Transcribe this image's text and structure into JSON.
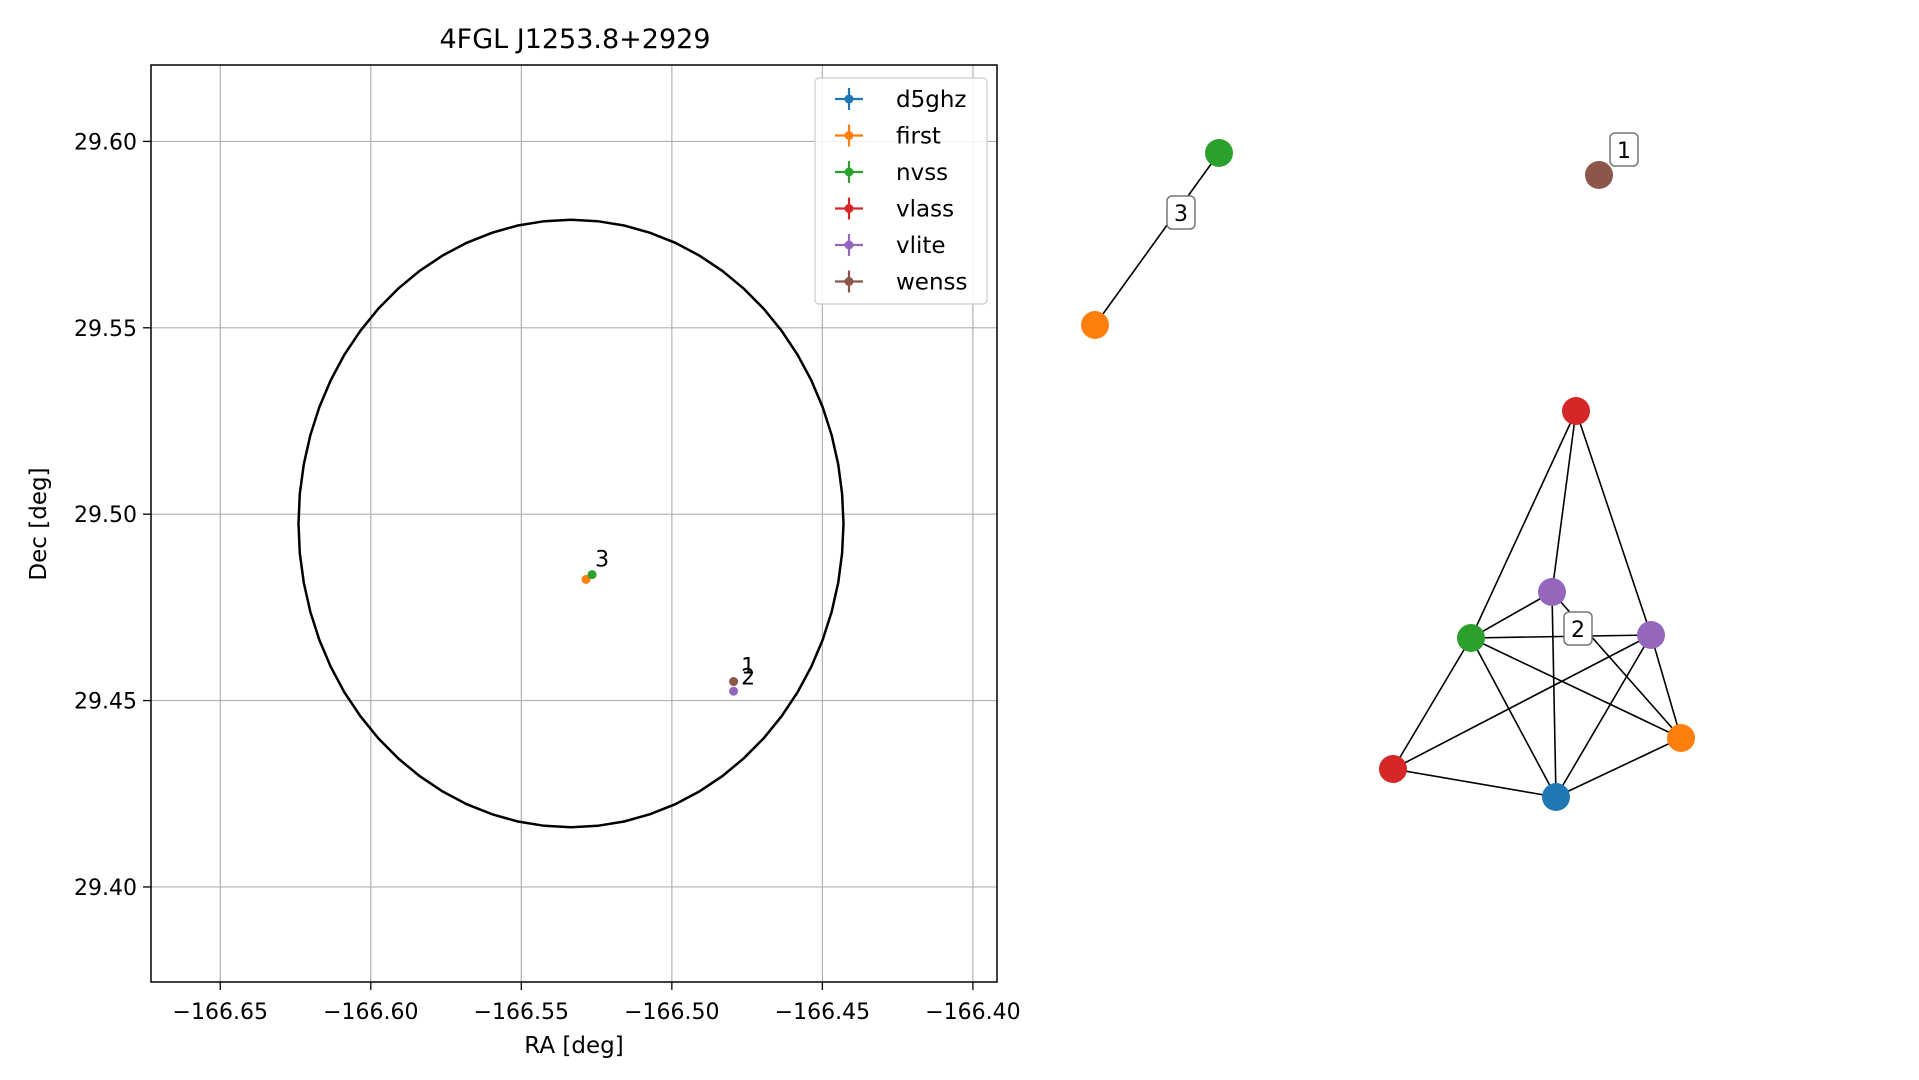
{
  "colors": {
    "d5ghz": "#1f77b4",
    "first": "#ff7f0e",
    "nvss": "#2ca02c",
    "vlass": "#d62728",
    "vlite": "#9467bd",
    "wenss": "#8c564b",
    "grid": "#b0b0b0",
    "edge": "#000000"
  },
  "chart_data": [
    {
      "type": "scatter",
      "title": "4FGL J1253.8+2929",
      "xlabel": "RA [deg]",
      "ylabel": "Dec [deg]",
      "xlim": [
        -166.673,
        -166.392
      ],
      "ylim": [
        29.3745,
        29.6205
      ],
      "xticks": [
        -166.65,
        -166.6,
        -166.55,
        -166.5,
        -166.45,
        -166.4
      ],
      "xtick_labels": [
        "−166.65",
        "−166.60",
        "−166.55",
        "−166.50",
        "−166.45",
        "−166.40"
      ],
      "yticks": [
        29.4,
        29.45,
        29.5,
        29.55,
        29.6
      ],
      "ytick_labels": [
        "29.40",
        "29.45",
        "29.50",
        "29.55",
        "29.60"
      ],
      "grid": true,
      "legend_position": "top-right",
      "ellipse": {
        "center_ra": -166.5335,
        "center_dec": 29.4975,
        "semi_major_ra": 0.0905,
        "semi_minor_dec": 0.0815
      },
      "series": [
        {
          "name": "d5ghz",
          "x": [],
          "y": []
        },
        {
          "name": "first",
          "x": [
            -166.5285
          ],
          "y": [
            29.4825
          ]
        },
        {
          "name": "nvss",
          "x": [
            -166.5265
          ],
          "y": [
            29.4838
          ]
        },
        {
          "name": "vlass",
          "x": [],
          "y": []
        },
        {
          "name": "vlite",
          "x": [
            -166.4795
          ],
          "y": [
            29.4525
          ]
        },
        {
          "name": "wenss",
          "x": [
            -166.4795
          ],
          "y": [
            29.4551
          ]
        }
      ],
      "annotations": [
        {
          "text": "3",
          "x": -166.5255,
          "y": 29.486
        },
        {
          "text": "1",
          "x": -166.477,
          "y": 29.4573
        },
        {
          "text": "2",
          "x": -166.477,
          "y": 29.4543
        }
      ]
    },
    {
      "type": "network",
      "nodes": [
        {
          "id": "n1",
          "survey": "nvss"
        },
        {
          "id": "n2",
          "survey": "first"
        },
        {
          "id": "n3",
          "survey": "wenss"
        },
        {
          "id": "n4",
          "survey": "vlass"
        },
        {
          "id": "n5",
          "survey": "vlite"
        },
        {
          "id": "n6",
          "survey": "nvss"
        },
        {
          "id": "n7",
          "survey": "vlite"
        },
        {
          "id": "n8",
          "survey": "vlass"
        },
        {
          "id": "n9",
          "survey": "first"
        },
        {
          "id": "n10",
          "survey": "d5ghz"
        }
      ],
      "edges": [
        [
          "n1",
          "n2"
        ],
        [
          "n4",
          "n5"
        ],
        [
          "n4",
          "n6"
        ],
        [
          "n4",
          "n7"
        ],
        [
          "n5",
          "n6"
        ],
        [
          "n5",
          "n10"
        ],
        [
          "n5",
          "n9"
        ],
        [
          "n6",
          "n7"
        ],
        [
          "n6",
          "n8"
        ],
        [
          "n6",
          "n10"
        ],
        [
          "n6",
          "n9"
        ],
        [
          "n7",
          "n8"
        ],
        [
          "n7",
          "n10"
        ],
        [
          "n7",
          "n9"
        ],
        [
          "n8",
          "n10"
        ],
        [
          "n10",
          "n9"
        ]
      ],
      "edge_labels": [
        {
          "text": "3",
          "between": [
            "n1",
            "n2"
          ]
        },
        {
          "text": "1",
          "near": "n3"
        },
        {
          "text": "2",
          "near": "n5"
        }
      ]
    }
  ]
}
